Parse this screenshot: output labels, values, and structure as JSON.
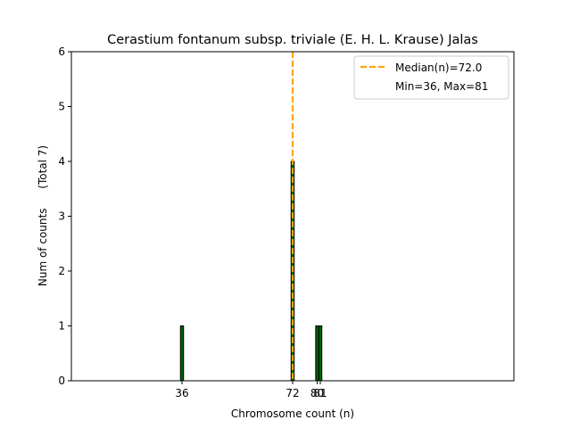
{
  "chart_data": {
    "type": "bar",
    "title": "Cerastium fontanum subsp. triviale (E. H. L. Krause) Jalas",
    "xlabel": "Chromosome count (n)",
    "ylabel": "Num of counts",
    "ylabel_note": "(Total 7)",
    "xlim": [
      0,
      144
    ],
    "ylim": [
      0,
      6
    ],
    "yticks": [
      0,
      1,
      2,
      3,
      4,
      5,
      6
    ],
    "xticks": [
      36,
      72,
      80,
      81
    ],
    "bin_width": 1,
    "bars": [
      {
        "x": 36,
        "count": 1
      },
      {
        "x": 72,
        "count": 4
      },
      {
        "x": 80,
        "count": 1
      },
      {
        "x": 81,
        "count": 1
      }
    ],
    "median": 72.0,
    "legend": {
      "position": "top-right",
      "median_label": "Median(n)=72.0",
      "range_label": "Min=36, Max=81"
    },
    "grid": false
  },
  "colors": {
    "bar_fill": "#006400",
    "bar_edge": "#000000",
    "median_line": "#FFA500",
    "axes": "#000000"
  }
}
